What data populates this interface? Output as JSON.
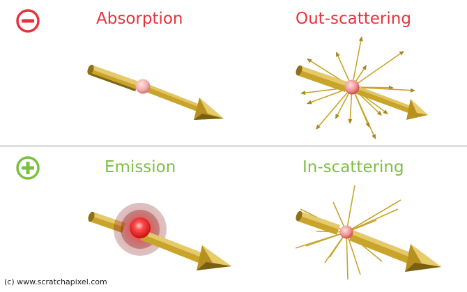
{
  "panels": {
    "absorption": {
      "label": "Absorption"
    },
    "out_scattering": {
      "label": "Out-scattering"
    },
    "emission": {
      "label": "Emission"
    },
    "in_scattering": {
      "label": "In-scattering"
    }
  },
  "signs": {
    "minus_icon": "minus-circle-icon",
    "plus_icon": "plus-circle-icon"
  },
  "colors": {
    "negative": "#e8323a",
    "positive": "#7cbf42",
    "arrow_gold": "#c8a42a",
    "particle_red": "#e03030",
    "divider": "#8c8c8c"
  },
  "credit": "(c) www.scratchapixel.com"
}
